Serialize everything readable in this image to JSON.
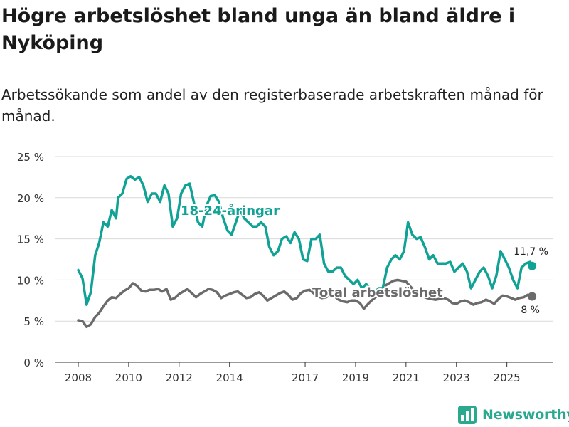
{
  "title": "Högre arbetslöshet bland unga än bland äldre i Nyköping",
  "subtitle": "Arbetssökande som andel av den registerbaserade arbetskraften månad för månad.",
  "brand": "Newsworthy",
  "colors": {
    "youth": "#10a294",
    "total": "#6b6b6b",
    "grid": "#d9d9d9",
    "brand": "#2aa98f"
  },
  "chart_data": {
    "type": "line",
    "ylim": [
      0,
      25
    ],
    "yticks": [
      0,
      5,
      10,
      15,
      20,
      25
    ],
    "ytick_labels": [
      "0 %",
      "5 %",
      "10 %",
      "15 %",
      "20 %",
      "25 %"
    ],
    "xticks": [
      2008,
      2010,
      2012,
      2014,
      2017,
      2019,
      2021,
      2023,
      2025
    ],
    "xtick_labels": [
      "2008",
      "2010",
      "2012",
      "2014",
      "2017",
      "2019",
      "2021",
      "2023",
      "2025"
    ],
    "series": [
      {
        "name": "18-24-åringar",
        "end_label": "11,7 %",
        "points": [
          [
            2008,
            11.2
          ],
          [
            2008.17,
            10.2
          ],
          [
            2008.33,
            7
          ],
          [
            2008.5,
            8.5
          ],
          [
            2008.67,
            13
          ],
          [
            2008.83,
            14.5
          ],
          [
            2009,
            17
          ],
          [
            2009.17,
            16.5
          ],
          [
            2009.33,
            18.5
          ],
          [
            2009.5,
            17.5
          ],
          [
            2009.58,
            20
          ],
          [
            2009.75,
            20.5
          ],
          [
            2009.92,
            22.3
          ],
          [
            2010.08,
            22.6
          ],
          [
            2010.25,
            22.2
          ],
          [
            2010.42,
            22.5
          ],
          [
            2010.58,
            21.5
          ],
          [
            2010.75,
            19.5
          ],
          [
            2010.92,
            20.5
          ],
          [
            2011.08,
            20.5
          ],
          [
            2011.25,
            19.5
          ],
          [
            2011.42,
            21.5
          ],
          [
            2011.58,
            20.5
          ],
          [
            2011.75,
            16.5
          ],
          [
            2011.92,
            17.5
          ],
          [
            2012.08,
            20.5
          ],
          [
            2012.25,
            21.5
          ],
          [
            2012.42,
            21.7
          ],
          [
            2012.58,
            19.5
          ],
          [
            2012.75,
            17
          ],
          [
            2012.92,
            16.5
          ],
          [
            2013.08,
            19
          ],
          [
            2013.25,
            20.2
          ],
          [
            2013.42,
            20.3
          ],
          [
            2013.58,
            19.5
          ],
          [
            2013.75,
            17.5
          ],
          [
            2013.92,
            16
          ],
          [
            2014.08,
            15.5
          ],
          [
            2014.25,
            17
          ],
          [
            2014.42,
            18.5
          ],
          [
            2014.58,
            17.5
          ],
          [
            2014.75,
            17
          ],
          [
            2014.92,
            16.5
          ],
          [
            2015.08,
            16.5
          ],
          [
            2015.25,
            17
          ],
          [
            2015.42,
            16.5
          ],
          [
            2015.58,
            14
          ],
          [
            2015.75,
            13
          ],
          [
            2015.92,
            13.5
          ],
          [
            2016.08,
            15
          ],
          [
            2016.25,
            15.3
          ],
          [
            2016.42,
            14.5
          ],
          [
            2016.58,
            15.8
          ],
          [
            2016.75,
            15
          ],
          [
            2016.92,
            12.5
          ],
          [
            2017.08,
            12.3
          ],
          [
            2017.25,
            15
          ],
          [
            2017.42,
            15
          ],
          [
            2017.58,
            15.5
          ],
          [
            2017.75,
            12
          ],
          [
            2017.92,
            11
          ],
          [
            2018.08,
            11
          ],
          [
            2018.25,
            11.5
          ],
          [
            2018.42,
            11.5
          ],
          [
            2018.58,
            10.5
          ],
          [
            2018.75,
            10
          ],
          [
            2018.92,
            9.5
          ],
          [
            2019.08,
            10
          ],
          [
            2019.25,
            9
          ],
          [
            2019.42,
            9.5
          ],
          [
            2019.58,
            9
          ],
          [
            2019.75,
            8.5
          ],
          [
            2019.92,
            9
          ],
          [
            2020.08,
            9
          ],
          [
            2020.25,
            11.5
          ],
          [
            2020.42,
            12.5
          ],
          [
            2020.58,
            13
          ],
          [
            2020.75,
            12.5
          ],
          [
            2020.92,
            13.5
          ],
          [
            2021.08,
            17
          ],
          [
            2021.25,
            15.5
          ],
          [
            2021.42,
            15
          ],
          [
            2021.58,
            15.2
          ],
          [
            2021.75,
            14
          ],
          [
            2021.92,
            12.5
          ],
          [
            2022.08,
            13
          ],
          [
            2022.25,
            12
          ],
          [
            2022.42,
            12
          ],
          [
            2022.58,
            12
          ],
          [
            2022.75,
            12.2
          ],
          [
            2022.92,
            11
          ],
          [
            2023.08,
            11.5
          ],
          [
            2023.25,
            12
          ],
          [
            2023.42,
            11
          ],
          [
            2023.58,
            9
          ],
          [
            2023.75,
            10
          ],
          [
            2023.92,
            11
          ],
          [
            2024.08,
            11.5
          ],
          [
            2024.25,
            10.5
          ],
          [
            2024.42,
            9
          ],
          [
            2024.58,
            10.5
          ],
          [
            2024.75,
            13.5
          ],
          [
            2024.92,
            12.5
          ],
          [
            2025.08,
            11.5
          ],
          [
            2025.25,
            10
          ],
          [
            2025.42,
            9
          ],
          [
            2025.58,
            11.5
          ],
          [
            2025.75,
            12
          ],
          [
            2025.92,
            12.2
          ],
          [
            2026.0,
            11.7
          ]
        ]
      },
      {
        "name": "Total arbetslöshet",
        "end_label": "8 %",
        "points": [
          [
            2008,
            5.1
          ],
          [
            2008.17,
            5
          ],
          [
            2008.33,
            4.3
          ],
          [
            2008.5,
            4.6
          ],
          [
            2008.67,
            5.5
          ],
          [
            2008.83,
            6
          ],
          [
            2009,
            6.8
          ],
          [
            2009.17,
            7.5
          ],
          [
            2009.33,
            7.9
          ],
          [
            2009.5,
            7.8
          ],
          [
            2009.67,
            8.3
          ],
          [
            2009.83,
            8.7
          ],
          [
            2010,
            9
          ],
          [
            2010.17,
            9.6
          ],
          [
            2010.33,
            9.3
          ],
          [
            2010.5,
            8.7
          ],
          [
            2010.67,
            8.6
          ],
          [
            2010.83,
            8.8
          ],
          [
            2011,
            8.8
          ],
          [
            2011.17,
            8.9
          ],
          [
            2011.33,
            8.6
          ],
          [
            2011.5,
            8.9
          ],
          [
            2011.67,
            7.6
          ],
          [
            2011.83,
            7.8
          ],
          [
            2012,
            8.3
          ],
          [
            2012.17,
            8.6
          ],
          [
            2012.33,
            8.9
          ],
          [
            2012.5,
            8.4
          ],
          [
            2012.67,
            7.9
          ],
          [
            2012.83,
            8.3
          ],
          [
            2013,
            8.6
          ],
          [
            2013.17,
            8.9
          ],
          [
            2013.33,
            8.8
          ],
          [
            2013.5,
            8.5
          ],
          [
            2013.67,
            7.8
          ],
          [
            2013.83,
            8.1
          ],
          [
            2014,
            8.3
          ],
          [
            2014.17,
            8.5
          ],
          [
            2014.33,
            8.6
          ],
          [
            2014.5,
            8.2
          ],
          [
            2014.67,
            7.8
          ],
          [
            2014.83,
            7.9
          ],
          [
            2015,
            8.3
          ],
          [
            2015.17,
            8.5
          ],
          [
            2015.33,
            8.1
          ],
          [
            2015.5,
            7.5
          ],
          [
            2015.67,
            7.8
          ],
          [
            2015.83,
            8.1
          ],
          [
            2016,
            8.4
          ],
          [
            2016.17,
            8.6
          ],
          [
            2016.33,
            8.2
          ],
          [
            2016.5,
            7.6
          ],
          [
            2016.67,
            7.8
          ],
          [
            2016.83,
            8.4
          ],
          [
            2017,
            8.7
          ],
          [
            2017.17,
            8.8
          ],
          [
            2017.33,
            8.4
          ],
          [
            2017.5,
            8
          ],
          [
            2017.67,
            7.8
          ],
          [
            2017.83,
            7.9
          ],
          [
            2018,
            8.2
          ],
          [
            2018.17,
            8
          ],
          [
            2018.33,
            7.6
          ],
          [
            2018.5,
            7.4
          ],
          [
            2018.67,
            7.3
          ],
          [
            2018.83,
            7.5
          ],
          [
            2019,
            7.5
          ],
          [
            2019.17,
            7.2
          ],
          [
            2019.33,
            6.5
          ],
          [
            2019.5,
            7.1
          ],
          [
            2019.67,
            7.6
          ],
          [
            2019.83,
            8
          ],
          [
            2020,
            8.8
          ],
          [
            2020.17,
            9.3
          ],
          [
            2020.33,
            9.6
          ],
          [
            2020.5,
            9.9
          ],
          [
            2020.67,
            10
          ],
          [
            2020.83,
            9.9
          ],
          [
            2021,
            9.8
          ],
          [
            2021.17,
            9.2
          ],
          [
            2021.33,
            8.7
          ],
          [
            2021.5,
            8.3
          ],
          [
            2021.67,
            8
          ],
          [
            2021.83,
            7.8
          ],
          [
            2022,
            7.7
          ],
          [
            2022.17,
            7.6
          ],
          [
            2022.33,
            7.7
          ],
          [
            2022.5,
            7.8
          ],
          [
            2022.67,
            7.6
          ],
          [
            2022.83,
            7.2
          ],
          [
            2023,
            7.1
          ],
          [
            2023.17,
            7.4
          ],
          [
            2023.33,
            7.5
          ],
          [
            2023.5,
            7.3
          ],
          [
            2023.67,
            7
          ],
          [
            2023.83,
            7.2
          ],
          [
            2024,
            7.3
          ],
          [
            2024.17,
            7.6
          ],
          [
            2024.33,
            7.4
          ],
          [
            2024.5,
            7.1
          ],
          [
            2024.67,
            7.7
          ],
          [
            2024.83,
            8.1
          ],
          [
            2025,
            8
          ],
          [
            2025.17,
            7.8
          ],
          [
            2025.33,
            7.6
          ],
          [
            2025.5,
            7.8
          ],
          [
            2025.67,
            7.9
          ],
          [
            2025.83,
            8.2
          ],
          [
            2026.0,
            8.0
          ]
        ]
      }
    ]
  }
}
